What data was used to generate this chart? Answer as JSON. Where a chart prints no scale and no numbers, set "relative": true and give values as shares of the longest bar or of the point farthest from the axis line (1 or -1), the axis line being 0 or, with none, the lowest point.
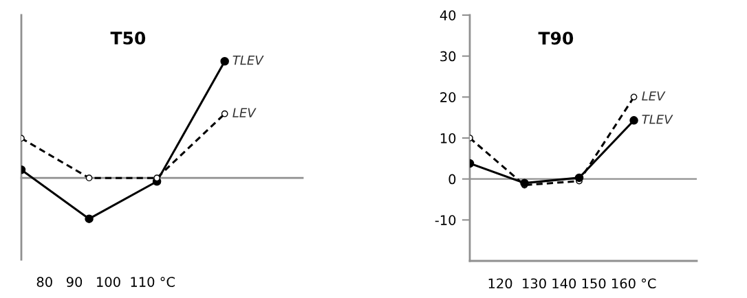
{
  "chart_data": [
    {
      "type": "line",
      "title": "T50",
      "xlabel": "80   90   100  110 °C",
      "relative": true,
      "categories": [
        null,
        null,
        null,
        null
      ],
      "legend": "right",
      "grid": false,
      "tick_labels": false,
      "marker": "circle",
      "series": [
        {
          "name": "TLEV",
          "color": "#000000",
          "line_style": "solid",
          "values": [
            0.07,
            -0.35,
            -0.03,
            1
          ]
        },
        {
          "name": "LEV",
          "color": "#000000",
          "line_style": "dashed",
          "values": [
            0.34,
            0,
            0,
            0.55
          ]
        }
      ]
    },
    {
      "type": "line",
      "title": "T90",
      "xlabel": "120  130 140 150 160 °C",
      "categories": [
        null,
        null,
        null,
        null
      ],
      "legend": "right",
      "grid": false,
      "tick_labels": "y",
      "marker": "circle",
      "ylim": [
        -20,
        40
      ],
      "yticks": [
        -10,
        0,
        10,
        20,
        30,
        40
      ],
      "ref_lines": [
        {
          "axis": "y",
          "value": 0,
          "color": "#909090"
        }
      ],
      "series": [
        {
          "name": "LEV",
          "color": "#000000",
          "line_style": "dashed",
          "values": [
            10,
            -1.5,
            -0.5,
            20
          ]
        },
        {
          "name": "TLEV",
          "color": "#000000",
          "line_style": "solid",
          "values": [
            3.8,
            -1,
            0.3,
            14.3
          ]
        }
      ]
    }
  ]
}
